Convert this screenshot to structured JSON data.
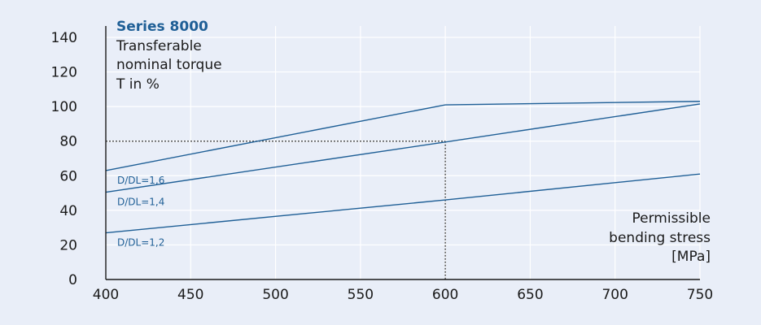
{
  "chart_data": {
    "type": "line",
    "title": "Series 8000",
    "ylabel_lines": [
      "Transferable",
      "nominal torque",
      "T in %"
    ],
    "xlabel_lines": [
      "Permissible",
      "bending stress",
      "[MPa]"
    ],
    "xlim": [
      400,
      750
    ],
    "ylim": [
      0,
      140
    ],
    "x_ticks": [
      400,
      450,
      500,
      550,
      600,
      650,
      700,
      750
    ],
    "y_ticks": [
      0,
      20,
      40,
      60,
      80,
      100,
      120,
      140
    ],
    "grid": true,
    "series": [
      {
        "name": "D/DL=1,6",
        "x": [
          400,
          600,
          750
        ],
        "y": [
          63,
          101,
          103
        ]
      },
      {
        "name": "D/DL=1,4",
        "x": [
          400,
          600,
          750
        ],
        "y": [
          50.5,
          79.5,
          101.5
        ]
      },
      {
        "name": "D/DL=1,2",
        "x": [
          400,
          600,
          750
        ],
        "y": [
          27,
          46,
          61
        ]
      }
    ],
    "reference_point": {
      "x": 600,
      "y": 80
    },
    "colors": {
      "line": "#1f5f96",
      "grid": "#ffffff",
      "background": "#e9eef8",
      "reference": "#555555"
    }
  }
}
